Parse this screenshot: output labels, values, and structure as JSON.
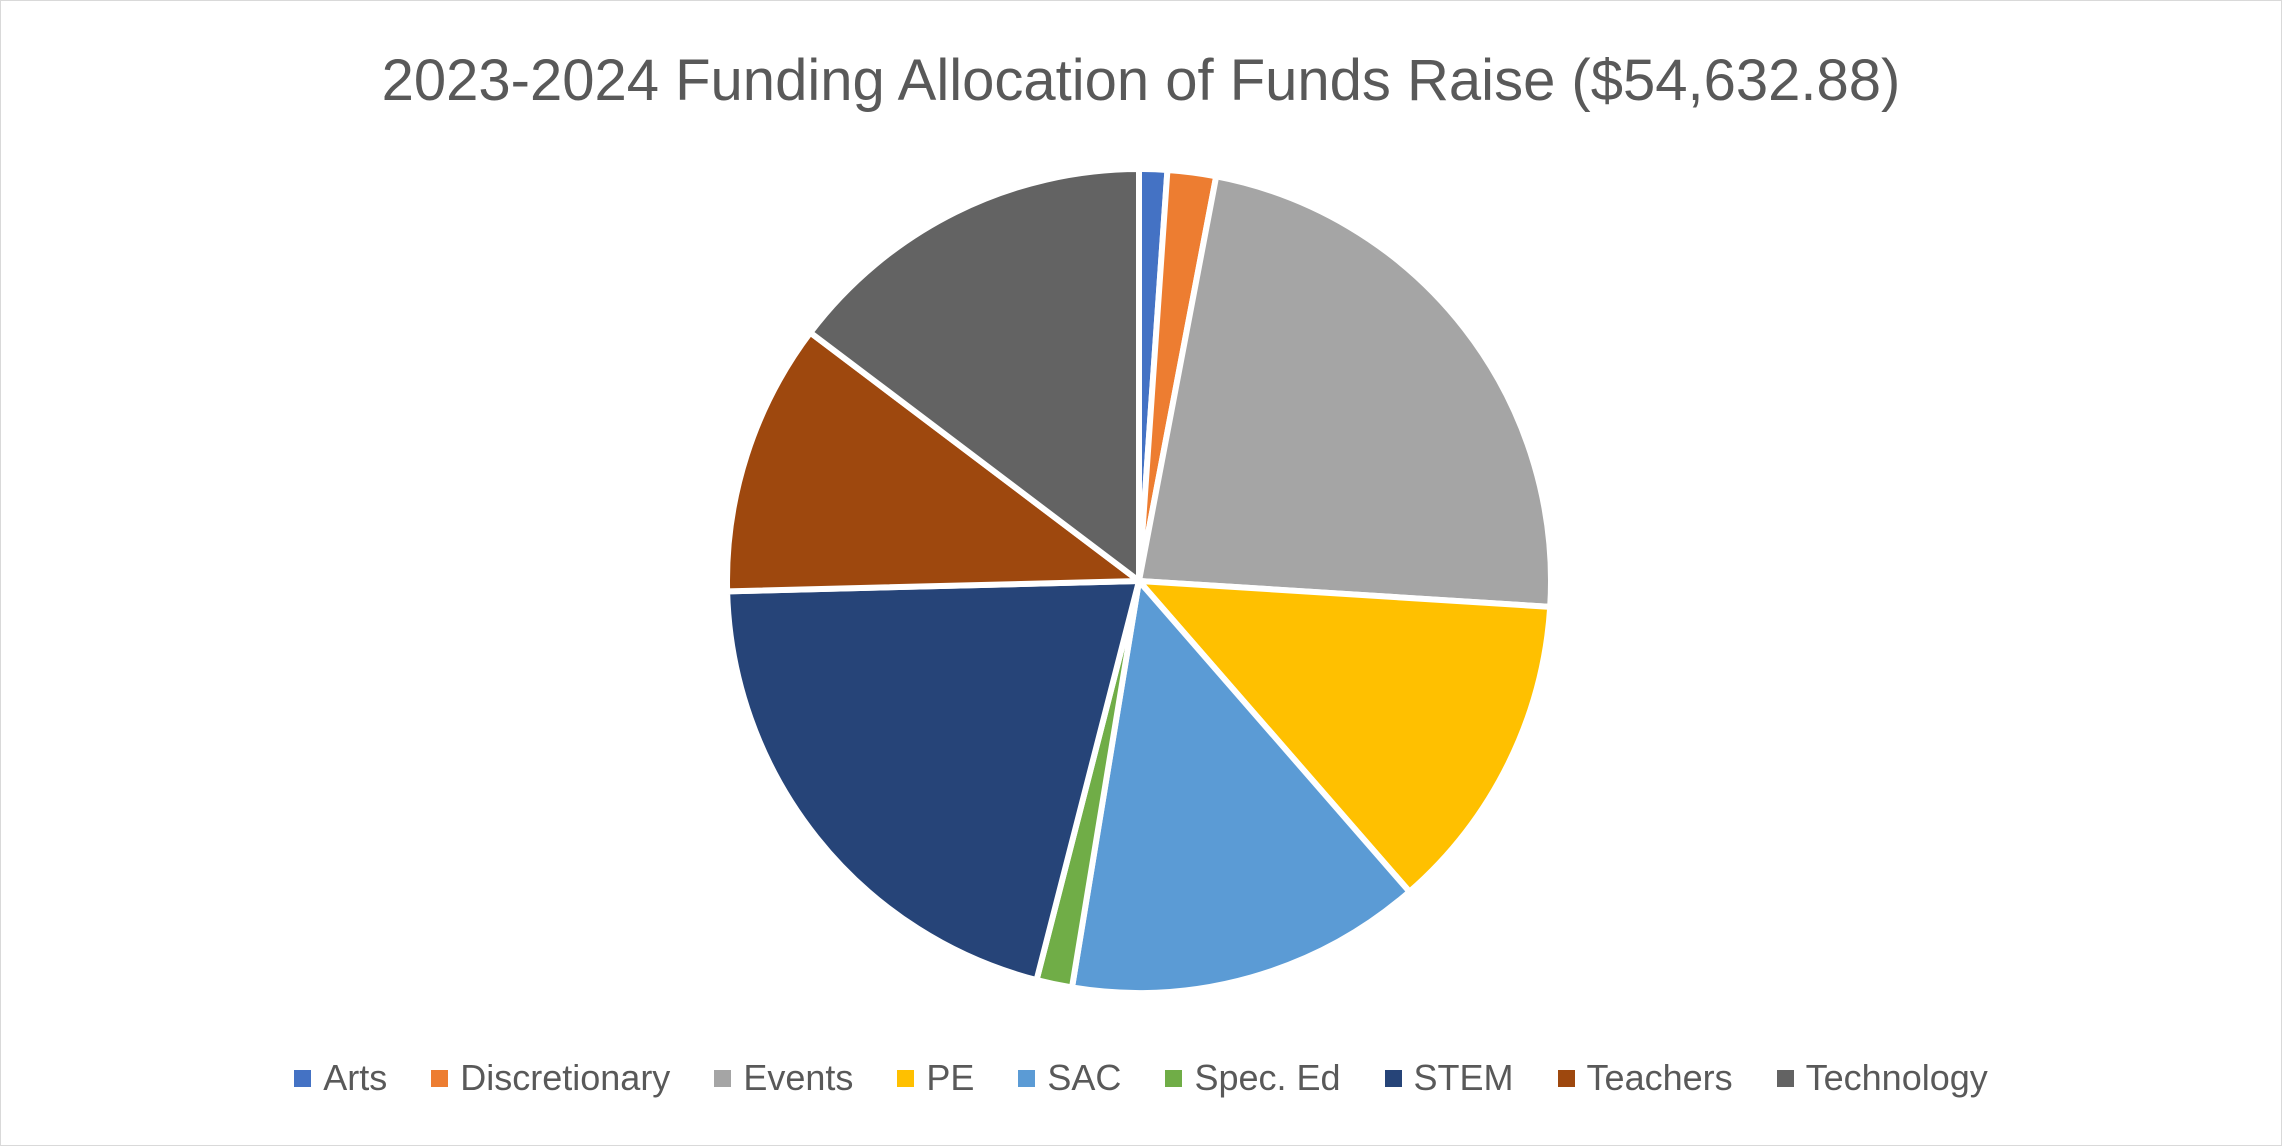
{
  "chart_data": {
    "type": "pie",
    "title": "2023-2024 Funding Allocation of Funds Raise ($54,632.88)",
    "categories": [
      "Arts",
      "Discretionary",
      "Events",
      "PE",
      "SAC",
      "Spec. Ed",
      "STEM",
      "Teachers",
      "Technology"
    ],
    "values": [
      1.1,
      1.9,
      23.0,
      12.6,
      14.0,
      1.4,
      20.6,
      10.7,
      14.7
    ],
    "value_unit": "percent of total (estimated)",
    "colors": [
      "#4472C4",
      "#ED7D31",
      "#A5A5A5",
      "#FFC000",
      "#5B9BD5",
      "#70AD47",
      "#264478",
      "#9E480E",
      "#636363"
    ],
    "start_angle": "12 o'clock",
    "direction": "clockwise",
    "legend_position": "bottom"
  }
}
